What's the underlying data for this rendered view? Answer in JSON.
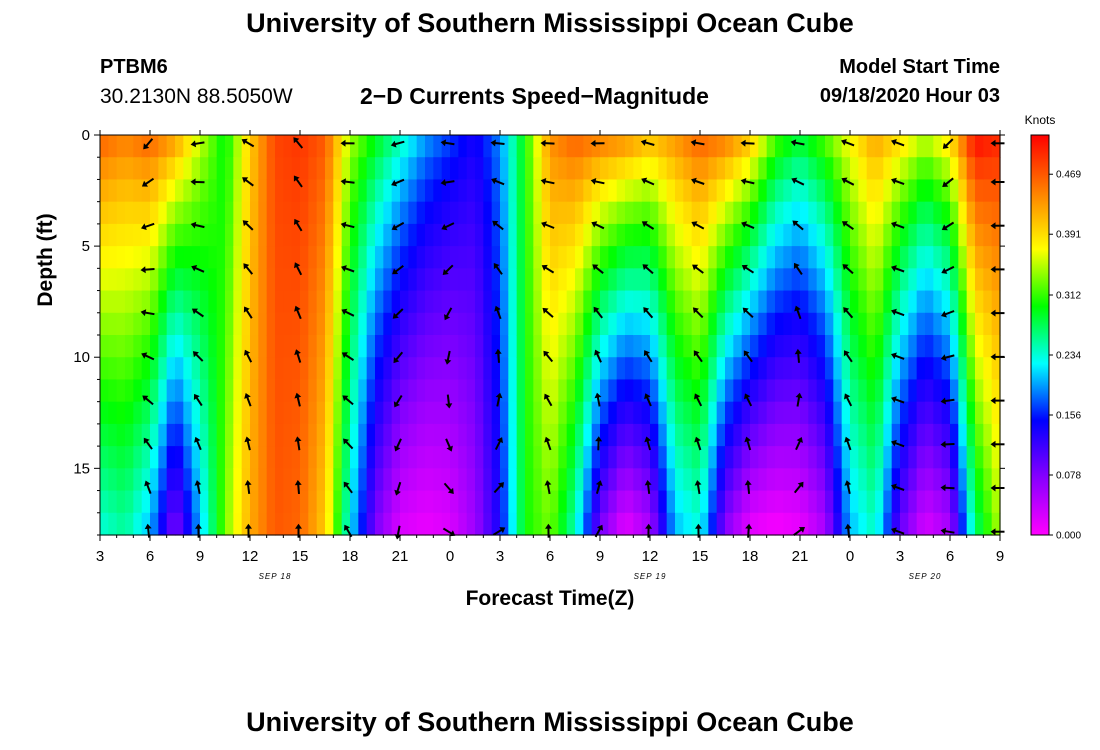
{
  "header": {
    "title": "University of Southern Mississippi Ocean Cube",
    "station_id": "PTBM6",
    "station_coords": "30.2130N 88.5050W",
    "plot_title": "2−D Currents Speed−Magnitude",
    "model_start_label": "Model Start Time",
    "model_start_time": "09/18/2020 Hour 03"
  },
  "footer": {
    "title": "University of Southern Mississippi Ocean Cube"
  },
  "chart_data": {
    "type": "heatmap",
    "title": "2−D Currents Speed−Magnitude",
    "xlabel": "Forecast Time(Z)",
    "ylabel": "Depth (ft)",
    "x_range_hours": [
      0,
      54
    ],
    "y_range_ft": [
      0,
      18
    ],
    "y_inverted": true,
    "x_ticks": [
      "3",
      "6",
      "9",
      "12",
      "15",
      "18",
      "21",
      "0",
      "3",
      "6",
      "9",
      "12",
      "15",
      "18",
      "21",
      "0",
      "3",
      "6",
      "9"
    ],
    "y_ticks": [
      "0",
      "5",
      "10",
      "15"
    ],
    "y_tick_values": [
      0,
      5,
      10,
      15
    ],
    "date_labels": [
      {
        "text": "SEP 18",
        "at_tick": 3.5
      },
      {
        "text": "SEP 19",
        "at_tick": 11
      },
      {
        "text": "SEP 20",
        "at_tick": 16.5
      }
    ],
    "colorbar": {
      "label": "Knots",
      "min": 0,
      "max": 0.52,
      "tick_labels": [
        "0.000",
        "0.078",
        "0.156",
        "0.234",
        "0.312",
        "0.391",
        "0.469"
      ],
      "tick_values": [
        0,
        0.078,
        0.156,
        0.234,
        0.312,
        0.391,
        0.469
      ]
    },
    "speed_keyframes": [
      {
        "t": 0,
        "surface": 0.47,
        "bottom": 0.23
      },
      {
        "t": 1.5,
        "surface": 0.45,
        "bottom": 0.25
      },
      {
        "t": 3,
        "surface": 0.47,
        "bottom": 0.2
      },
      {
        "t": 4.5,
        "surface": 0.44,
        "bottom": 0.07
      },
      {
        "t": 6,
        "surface": 0.36,
        "bottom": 0.2
      },
      {
        "t": 7.5,
        "surface": 0.29,
        "bottom": 0.33
      },
      {
        "t": 9,
        "surface": 0.4,
        "bottom": 0.42
      },
      {
        "t": 10.5,
        "surface": 0.48,
        "bottom": 0.47
      },
      {
        "t": 12,
        "surface": 0.49,
        "bottom": 0.46
      },
      {
        "t": 13.5,
        "surface": 0.47,
        "bottom": 0.4
      },
      {
        "t": 15,
        "surface": 0.35,
        "bottom": 0.22
      },
      {
        "t": 16.5,
        "surface": 0.3,
        "bottom": 0.08
      },
      {
        "t": 18,
        "surface": 0.25,
        "bottom": 0.02
      },
      {
        "t": 19.5,
        "surface": 0.2,
        "bottom": 0.01
      },
      {
        "t": 21,
        "surface": 0.17,
        "bottom": 0.02
      },
      {
        "t": 22.5,
        "surface": 0.14,
        "bottom": 0.06
      },
      {
        "t": 24,
        "surface": 0.19,
        "bottom": 0.14
      },
      {
        "t": 25.5,
        "surface": 0.3,
        "bottom": 0.3
      },
      {
        "t": 27,
        "surface": 0.44,
        "bottom": 0.33
      },
      {
        "t": 28.5,
        "surface": 0.47,
        "bottom": 0.24
      },
      {
        "t": 30,
        "surface": 0.46,
        "bottom": 0.08
      },
      {
        "t": 31.5,
        "surface": 0.45,
        "bottom": 0.01
      },
      {
        "t": 33,
        "surface": 0.42,
        "bottom": 0.05
      },
      {
        "t": 34.5,
        "surface": 0.44,
        "bottom": 0.2
      },
      {
        "t": 36,
        "surface": 0.47,
        "bottom": 0.23
      },
      {
        "t": 37.5,
        "surface": 0.46,
        "bottom": 0.07
      },
      {
        "t": 39,
        "surface": 0.42,
        "bottom": 0.01
      },
      {
        "t": 40.5,
        "surface": 0.33,
        "bottom": 0.0
      },
      {
        "t": 42,
        "surface": 0.29,
        "bottom": 0.01
      },
      {
        "t": 43.5,
        "surface": 0.33,
        "bottom": 0.05
      },
      {
        "t": 45,
        "surface": 0.38,
        "bottom": 0.2
      },
      {
        "t": 46.5,
        "surface": 0.43,
        "bottom": 0.24
      },
      {
        "t": 48,
        "surface": 0.4,
        "bottom": 0.09
      },
      {
        "t": 49.5,
        "surface": 0.36,
        "bottom": 0.02
      },
      {
        "t": 51,
        "surface": 0.4,
        "bottom": 0.05
      },
      {
        "t": 52.5,
        "surface": 0.52,
        "bottom": 0.26
      },
      {
        "t": 54,
        "surface": 0.5,
        "bottom": 0.35
      }
    ],
    "vector_direction_keyframes_deg": [
      {
        "t": 0,
        "surface": 225,
        "bottom": 90
      },
      {
        "t": 3,
        "surface": 230,
        "bottom": 95
      },
      {
        "t": 6,
        "surface": 190,
        "bottom": 90
      },
      {
        "t": 9,
        "surface": 150,
        "bottom": 90
      },
      {
        "t": 12,
        "surface": 130,
        "bottom": 90
      },
      {
        "t": 15,
        "surface": 180,
        "bottom": 120
      },
      {
        "t": 18,
        "surface": 195,
        "bottom": 260
      },
      {
        "t": 21,
        "surface": 170,
        "bottom": 330
      },
      {
        "t": 24,
        "surface": 175,
        "bottom": 30
      },
      {
        "t": 27,
        "surface": 178,
        "bottom": 90
      },
      {
        "t": 30,
        "surface": 182,
        "bottom": 60
      },
      {
        "t": 33,
        "surface": 165,
        "bottom": 88
      },
      {
        "t": 36,
        "surface": 170,
        "bottom": 90
      },
      {
        "t": 39,
        "surface": 178,
        "bottom": 85
      },
      {
        "t": 42,
        "surface": 170,
        "bottom": 35
      },
      {
        "t": 45,
        "surface": 160,
        "bottom": 95
      },
      {
        "t": 48,
        "surface": 160,
        "bottom": 160
      },
      {
        "t": 51,
        "surface": 225,
        "bottom": 170
      },
      {
        "t": 54,
        "surface": 180,
        "bottom": 180
      }
    ]
  },
  "colors": {
    "background": "#ffffff",
    "axis": "#000000",
    "colormap": [
      "#ff00ff",
      "#8800ff",
      "#0000ff",
      "#00ffff",
      "#00ff00",
      "#ffff00",
      "#ff8000",
      "#ff0000"
    ]
  }
}
